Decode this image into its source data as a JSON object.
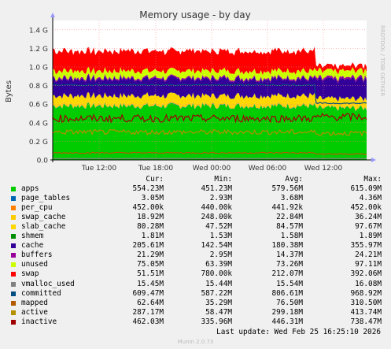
{
  "chart_data": {
    "type": "area",
    "title": "Memory usage - by day",
    "ylabel": "Bytes",
    "side_label": "RRDTOOL / TOBI OETIKER",
    "ylim": [
      0,
      1.5
    ],
    "y_unit": "G",
    "y_ticks": [
      "0.0",
      "0.2 G",
      "0.4 G",
      "0.6 G",
      "0.8 G",
      "1.0 G",
      "1.2 G",
      "1.4 G"
    ],
    "x_ticks": [
      "Tue 12:00",
      "Tue 18:00",
      "Wed 00:00",
      "Wed 06:00",
      "Wed 12:00"
    ],
    "grid": true,
    "columns": [
      "Cur:",
      "Min:",
      "Avg:",
      "Max:"
    ],
    "series": [
      {
        "name": "apps",
        "color": "#00cc00",
        "cur": "554.23M",
        "min": "451.23M",
        "avg": "579.56M",
        "max": "615.09M"
      },
      {
        "name": "page_tables",
        "color": "#0066b3",
        "cur": "3.05M",
        "min": "2.93M",
        "avg": "3.68M",
        "max": "4.36M"
      },
      {
        "name": "per_cpu",
        "color": "#ff8000",
        "cur": "452.00k",
        "min": "440.00k",
        "avg": "441.92k",
        "max": "452.00k"
      },
      {
        "name": "swap_cache",
        "color": "#ffcc00",
        "cur": "18.92M",
        "min": "248.00k",
        "avg": "22.84M",
        "max": "36.24M"
      },
      {
        "name": "slab_cache",
        "color": "#ffd700",
        "cur": "80.28M",
        "min": "47.52M",
        "avg": "84.57M",
        "max": "97.67M"
      },
      {
        "name": "shmem",
        "color": "#008f00",
        "cur": "1.81M",
        "min": "1.53M",
        "avg": "1.58M",
        "max": "1.89M"
      },
      {
        "name": "cache",
        "color": "#330099",
        "cur": "205.61M",
        "min": "142.54M",
        "avg": "180.38M",
        "max": "355.97M"
      },
      {
        "name": "buffers",
        "color": "#990099",
        "cur": "21.29M",
        "min": "2.95M",
        "avg": "14.37M",
        "max": "24.21M"
      },
      {
        "name": "unused",
        "color": "#ccff00",
        "cur": "75.05M",
        "min": "63.39M",
        "avg": "73.26M",
        "max": "97.11M"
      },
      {
        "name": "swap",
        "color": "#ff0000",
        "cur": "51.51M",
        "min": "780.00k",
        "avg": "212.07M",
        "max": "392.06M"
      },
      {
        "name": "vmalloc_used",
        "color": "#808080",
        "cur": "15.45M",
        "min": "15.44M",
        "avg": "15.54M",
        "max": "16.08M"
      },
      {
        "name": "committed",
        "color": "#004d80",
        "cur": "609.47M",
        "min": "587.22M",
        "avg": "806.61M",
        "max": "968.92M"
      },
      {
        "name": "mapped",
        "color": "#b35a00",
        "cur": "62.64M",
        "min": "35.29M",
        "avg": "76.50M",
        "max": "310.50M"
      },
      {
        "name": "active",
        "color": "#b39100",
        "cur": "287.17M",
        "min": "58.47M",
        "avg": "299.18M",
        "max": "413.74M"
      },
      {
        "name": "inactive",
        "color": "#a00000",
        "cur": "462.03M",
        "min": "335.96M",
        "avg": "446.31M",
        "max": "738.47M"
      }
    ],
    "last_update": "Last update: Wed Feb 25 16:25:10 2026",
    "generator": "Munin 2.0.73"
  }
}
